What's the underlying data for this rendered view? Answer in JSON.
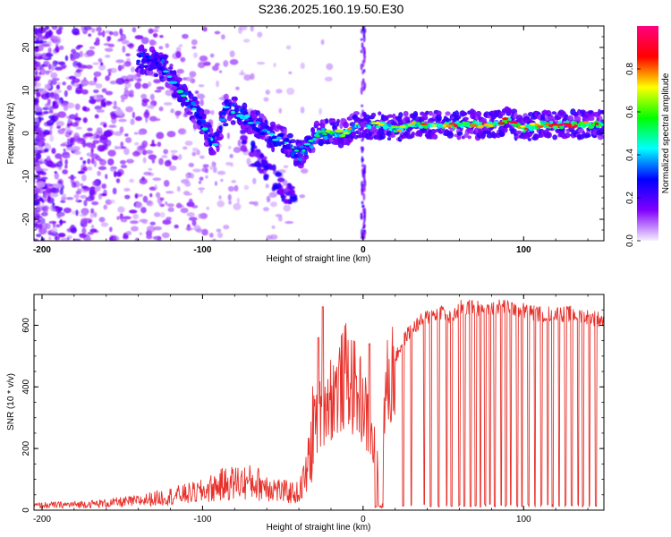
{
  "title": "S236.2025.160.19.50.E30",
  "chart_data": [
    {
      "type": "heatmap",
      "xlabel": "Height of straight line (km)",
      "ylabel": "Frequency (Hz)",
      "xlim": [
        -205,
        150
      ],
      "ylim": [
        -25,
        25
      ],
      "x_ticks": [
        -200,
        -100,
        0,
        100
      ],
      "x_tick_labels": [
        "-200",
        "-100",
        "0",
        "100"
      ],
      "y_ticks": [
        -20,
        -10,
        0,
        10,
        20
      ],
      "y_tick_labels": [
        "-20",
        "-10",
        "0",
        "10",
        "20"
      ],
      "colorbar": {
        "label": "Normalized spectral amplitude",
        "range": [
          0,
          1
        ],
        "ticks": [
          0.0,
          0.2,
          0.4,
          0.6,
          0.8
        ],
        "tick_labels": [
          "0.0",
          "0.2",
          "0.4",
          "0.6",
          "0.8"
        ],
        "colors": [
          "#f6f0ff",
          "#8000ff",
          "#0000ff",
          "#00ffff",
          "#00ff00",
          "#ffff00",
          "#ff0000",
          "#ff0080"
        ]
      },
      "ridge": {
        "x": [
          -135,
          -125,
          -118,
          -110,
          -100,
          -92,
          -85,
          -78,
          -70,
          -62,
          -55,
          -48,
          -40,
          -35,
          -30,
          -25,
          -20,
          -15,
          -10,
          -5,
          0,
          10,
          20,
          30,
          40,
          50,
          60,
          70,
          80,
          90,
          100,
          110,
          120,
          130,
          140,
          150
        ],
        "y": [
          17,
          16,
          12,
          8,
          2,
          -3,
          6,
          5,
          3,
          1,
          -1,
          -2,
          -5,
          -3,
          -1,
          0,
          0,
          0,
          0,
          2,
          2,
          2,
          1,
          2,
          2,
          2,
          2,
          2,
          2,
          3,
          1,
          2,
          2,
          2,
          2,
          2
        ],
        "amplitude": [
          0.45,
          0.5,
          0.45,
          0.5,
          0.55,
          0.4,
          0.45,
          0.5,
          0.45,
          0.4,
          0.45,
          0.5,
          0.55,
          0.5,
          0.6,
          0.6,
          0.65,
          0.7,
          0.75,
          0.75,
          0.6,
          0.7,
          0.75,
          0.8,
          0.85,
          0.85,
          0.95,
          0.85,
          0.85,
          0.95,
          0.8,
          0.85,
          0.95,
          0.95,
          0.9,
          0.85
        ]
      }
    },
    {
      "type": "line",
      "xlabel": "Height of straight line (km)",
      "ylabel": "SNR (10 * v/v)",
      "xlim": [
        -205,
        150
      ],
      "ylim": [
        0,
        700
      ],
      "x_ticks": [
        -200,
        -100,
        0,
        100
      ],
      "x_tick_labels": [
        "-200",
        "-100",
        "0",
        "100"
      ],
      "y_ticks": [
        0,
        200,
        400,
        600
      ],
      "y_tick_labels": [
        "0",
        "200",
        "400",
        "600"
      ],
      "color": "#e8302a",
      "envelope": {
        "x": [
          -205,
          -180,
          -160,
          -140,
          -120,
          -100,
          -90,
          -80,
          -70,
          -60,
          -50,
          -40,
          -35,
          -30,
          -25,
          -20,
          -15,
          -10,
          -5,
          0,
          5,
          10,
          15,
          20,
          25,
          30,
          40,
          50,
          55,
          60,
          70,
          80,
          90,
          100,
          110,
          120,
          130,
          140,
          150
        ],
        "values": [
          15,
          18,
          22,
          30,
          45,
          60,
          80,
          90,
          90,
          80,
          60,
          55,
          120,
          300,
          380,
          400,
          430,
          480,
          420,
          380,
          250,
          200,
          430,
          500,
          560,
          600,
          640,
          660,
          630,
          670,
          670,
          670,
          675,
          660,
          650,
          650,
          650,
          640,
          630
        ]
      },
      "dropouts_x": [
        8,
        10,
        12,
        25,
        30,
        38,
        42,
        47,
        52,
        55,
        60,
        63,
        67,
        70,
        73,
        76,
        79,
        82,
        86,
        89,
        92,
        96,
        99,
        103,
        107,
        111,
        115,
        118,
        122,
        126,
        130,
        134,
        137,
        141,
        145
      ]
    }
  ]
}
